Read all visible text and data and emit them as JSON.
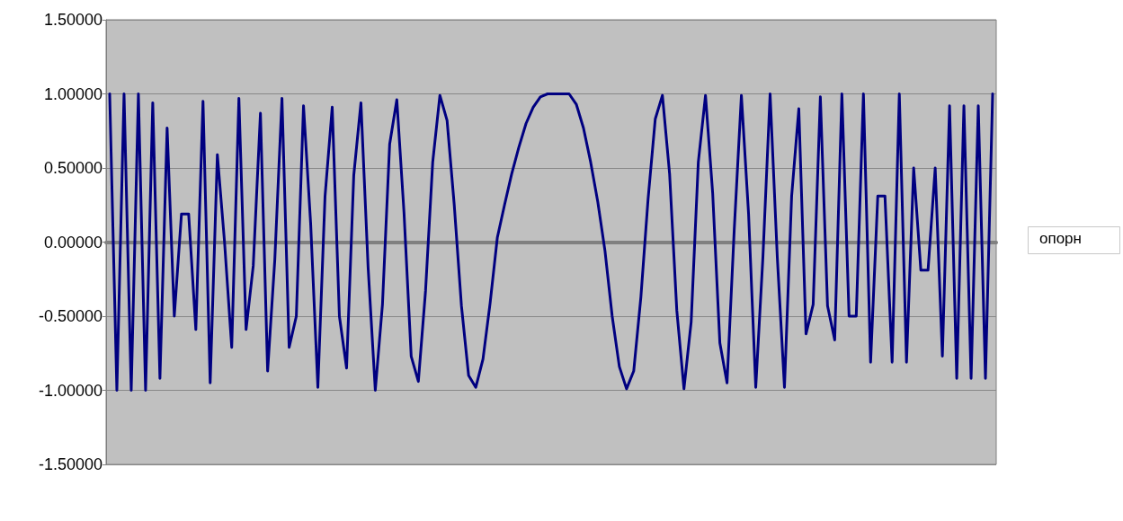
{
  "chart_data": {
    "type": "line",
    "categories": [
      null,
      null,
      null,
      null,
      null,
      null,
      null,
      null,
      null,
      null,
      null,
      null,
      null,
      null,
      null,
      null,
      null,
      null,
      null,
      null,
      null,
      null,
      null,
      null,
      null,
      null,
      null,
      null,
      null,
      null,
      null,
      null,
      null,
      null,
      null,
      null,
      null,
      null,
      null,
      null,
      null,
      null,
      null,
      null,
      null,
      null,
      null,
      null,
      null,
      null,
      null,
      null,
      null,
      null,
      null,
      null,
      null,
      null,
      null,
      null,
      null,
      null,
      null,
      null,
      null,
      null,
      null,
      null,
      null,
      null,
      null,
      null,
      null,
      null,
      null,
      null,
      null,
      null,
      null,
      null,
      null,
      null,
      null,
      null,
      null,
      null,
      null,
      null,
      null,
      null,
      null,
      null,
      null,
      null,
      null,
      null,
      null,
      null,
      null,
      null,
      null,
      null,
      null,
      null,
      null,
      null,
      null,
      null,
      null,
      null,
      null,
      null,
      null,
      null,
      null,
      null,
      null,
      null,
      null,
      null,
      null,
      null,
      null,
      null
    ],
    "series": [
      {
        "color": "#000080",
        "values": [
          1,
          -1,
          1,
          -1,
          1,
          -1,
          0.94,
          -0.92,
          0.77,
          -0.5,
          0.19,
          0.19,
          -0.59,
          0.95,
          -0.95,
          0.59,
          0,
          -0.71,
          0.97,
          -0.59,
          -0.16,
          0.87,
          -0.87,
          -0.12,
          0.97,
          -0.71,
          -0.5,
          0.92,
          0.12,
          -0.98,
          0.31,
          0.91,
          -0.5,
          -0.85,
          0.45,
          0.94,
          -0.17,
          -1,
          -0.42,
          0.66,
          0.96,
          0.2,
          -0.77,
          -0.94,
          -0.33,
          0.54,
          0.99,
          0.82,
          0.25,
          -0.43,
          -0.9,
          -0.98,
          -0.79,
          -0.41,
          0.03,
          0.25,
          0.46,
          0.64,
          0.8,
          0.91,
          0.98,
          1,
          1,
          1,
          1,
          0.93,
          0.77,
          0.54,
          0.27,
          -0.06,
          -0.5,
          -0.84,
          -0.99,
          -0.87,
          -0.37,
          0.29,
          0.83,
          0.99,
          0.46,
          -0.46,
          -0.99,
          -0.54,
          0.54,
          0.99,
          0.33,
          -0.68,
          -0.95,
          0.08,
          0.99,
          0.19,
          -0.98,
          -0.1,
          1,
          -0.1,
          -0.98,
          0.31,
          0.9,
          -0.62,
          -0.42,
          0.98,
          -0.43,
          -0.66,
          1,
          -0.5,
          -0.5,
          1,
          -0.81,
          0.31,
          0.31,
          -0.81,
          1,
          -0.81,
          0.5,
          -0.19,
          -0.19,
          0.5,
          -0.77,
          0.92,
          -0.92,
          0.92,
          -0.92,
          0.92,
          -0.92,
          1
        ]
      }
    ],
    "ylim": [
      -1.5,
      1.5
    ],
    "yticks": [
      {
        "value": -1.5,
        "label": "-1.50000"
      },
      {
        "value": -1,
        "label": "-1.00000"
      },
      {
        "value": -0.5,
        "label": "-0.50000"
      },
      {
        "value": 0,
        "label": "0.00000"
      },
      {
        "value": 0.5,
        "label": "0.50000"
      },
      {
        "value": 1,
        "label": "1.00000"
      },
      {
        "value": 1.5,
        "label": "1.50000"
      }
    ],
    "grid": "y",
    "tick_labels": "y",
    "line_style": "solid",
    "annotations": [
      "опорн"
    ]
  }
}
